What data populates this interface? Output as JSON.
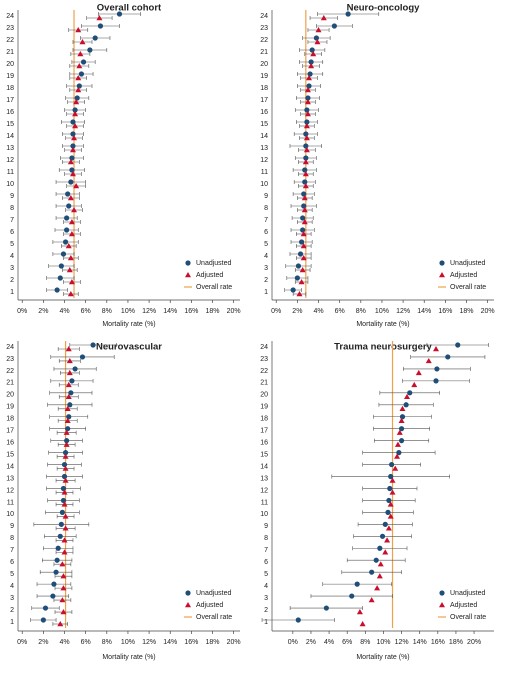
{
  "chart_data": [
    {
      "type": "dot",
      "title": "Overall cohort",
      "xlabel": "Mortality rate (%)",
      "categories": [
        "1",
        "2",
        "3",
        "4",
        "5",
        "6",
        "7",
        "8",
        "9",
        "10",
        "11",
        "12",
        "13",
        "14",
        "15",
        "16",
        "17",
        "18",
        "19",
        "20",
        "21",
        "22",
        "23",
        "24"
      ],
      "series": [
        {
          "name": "Unadjusted",
          "color": "#1f4e79",
          "marker": "circle",
          "values": [
            3.3,
            3.6,
            3.7,
            3.9,
            4.1,
            4.2,
            4.2,
            4.4,
            4.3,
            4.6,
            4.7,
            4.7,
            4.8,
            4.8,
            4.8,
            5.0,
            5.2,
            5.4,
            5.6,
            5.8,
            6.4,
            6.9,
            7.4,
            9.2
          ],
          "errors": [
            1.0,
            1.3,
            1.2,
            1.0,
            1.2,
            1.1,
            1.0,
            1.2,
            1.1,
            1.4,
            1.2,
            1.1,
            1.0,
            1.0,
            1.1,
            1.0,
            1.1,
            1.2,
            1.1,
            1.1,
            1.6,
            1.4,
            1.8,
            2.0
          ]
        },
        {
          "name": "Adjusted",
          "color": "#c8102e",
          "marker": "triangle",
          "values": [
            4.6,
            4.7,
            4.5,
            4.6,
            4.4,
            4.7,
            4.7,
            4.9,
            4.6,
            5.1,
            4.8,
            4.6,
            4.8,
            4.9,
            5.0,
            5.0,
            5.1,
            5.3,
            5.3,
            5.4,
            5.5,
            5.7,
            5.3,
            7.3
          ],
          "errors": [
            0.7,
            0.8,
            0.7,
            0.7,
            0.7,
            0.8,
            0.8,
            0.8,
            0.8,
            0.9,
            0.8,
            0.8,
            0.8,
            0.8,
            0.8,
            0.8,
            0.8,
            0.8,
            0.8,
            0.9,
            0.9,
            0.9,
            0.9,
            1.2
          ]
        }
      ],
      "reference": {
        "name": "Overall rate",
        "color": "#f0a04b",
        "value": 4.9
      },
      "xlim": [
        -0.4,
        20.6
      ],
      "xticks": [
        {
          "value": 0,
          "label": "0%"
        },
        {
          "value": 2,
          "label": "2%"
        },
        {
          "value": 4,
          "label": "4%"
        },
        {
          "value": 6,
          "label": "6%"
        },
        {
          "value": 8,
          "label": "8%"
        },
        {
          "value": 10,
          "label": "10%"
        },
        {
          "value": 12,
          "label": "12%"
        },
        {
          "value": 14,
          "label": "14%"
        },
        {
          "value": 16,
          "label": "16%"
        },
        {
          "value": 18,
          "label": "18%"
        },
        {
          "value": 20,
          "label": "20%"
        }
      ],
      "legend": "lower right"
    },
    {
      "type": "dot",
      "title": "Neuro-oncology",
      "xlabel": "Mortality rate (%)",
      "categories": [
        "1",
        "2",
        "3",
        "4",
        "5",
        "6",
        "7",
        "8",
        "9",
        "10",
        "11",
        "12",
        "13",
        "14",
        "15",
        "16",
        "17",
        "18",
        "19",
        "20",
        "21",
        "22",
        "23",
        "24"
      ],
      "series": [
        {
          "name": "Unadjusted",
          "color": "#1f4e79",
          "marker": "circle",
          "values": [
            1.6,
            2.0,
            2.1,
            2.3,
            2.4,
            2.5,
            2.5,
            2.6,
            2.6,
            2.7,
            2.7,
            2.8,
            2.8,
            2.8,
            2.9,
            2.9,
            3.0,
            3.1,
            3.2,
            3.3,
            3.4,
            3.8,
            5.5,
            6.8
          ],
          "errors": [
            0.8,
            1.0,
            1.2,
            1.0,
            1.0,
            1.1,
            1.0,
            1.2,
            1.0,
            1.0,
            1.1,
            1.0,
            1.5,
            1.1,
            1.0,
            1.1,
            1.1,
            1.1,
            1.2,
            1.1,
            1.2,
            1.3,
            1.7,
            2.9
          ]
        },
        {
          "name": "Adjusted",
          "color": "#c8102e",
          "marker": "triangle",
          "values": [
            2.2,
            2.4,
            2.5,
            2.6,
            2.6,
            2.6,
            2.7,
            2.7,
            2.7,
            2.8,
            2.8,
            2.8,
            2.9,
            2.9,
            2.9,
            3.0,
            3.0,
            3.0,
            3.1,
            3.3,
            3.5,
            3.9,
            4.0,
            4.5
          ],
          "errors": [
            0.6,
            0.6,
            0.7,
            0.7,
            0.7,
            0.7,
            0.7,
            0.7,
            0.7,
            0.7,
            0.7,
            0.7,
            0.8,
            0.7,
            0.7,
            0.7,
            0.7,
            0.7,
            0.8,
            0.8,
            0.8,
            0.9,
            1.0,
            1.3
          ]
        }
      ],
      "reference": {
        "name": "Overall rate",
        "color": "#f0a04b",
        "value": 2.8
      },
      "xlim": [
        -0.4,
        20.6
      ],
      "xticks": [
        {
          "value": 0,
          "label": "0%"
        },
        {
          "value": 2,
          "label": "2%"
        },
        {
          "value": 4,
          "label": "4%"
        },
        {
          "value": 6,
          "label": "6%"
        },
        {
          "value": 8,
          "label": "8%"
        },
        {
          "value": 10,
          "label": "10%"
        },
        {
          "value": 12,
          "label": "12%"
        },
        {
          "value": 14,
          "label": "14%"
        },
        {
          "value": 16,
          "label": "16%"
        },
        {
          "value": 18,
          "label": "18%"
        },
        {
          "value": 20,
          "label": "20%"
        }
      ],
      "legend": "lower right"
    },
    {
      "type": "dot",
      "title": "Neurovascular",
      "xlabel": "Mortality rate (%)",
      "categories": [
        "1",
        "2",
        "3",
        "4",
        "5",
        "6",
        "7",
        "8",
        "9",
        "10",
        "11",
        "12",
        "13",
        "14",
        "15",
        "16",
        "17",
        "18",
        "19",
        "20",
        "21",
        "22",
        "23",
        "24"
      ],
      "series": [
        {
          "name": "Unadjusted",
          "color": "#1f4e79",
          "marker": "circle",
          "values": [
            2.0,
            2.2,
            2.9,
            3.0,
            3.2,
            3.3,
            3.4,
            3.6,
            3.7,
            3.8,
            3.9,
            3.9,
            4.0,
            4.0,
            4.1,
            4.2,
            4.3,
            4.4,
            4.5,
            4.6,
            4.7,
            5.0,
            5.7,
            6.7
          ],
          "errors": [
            1.2,
            1.3,
            1.5,
            1.6,
            1.5,
            1.4,
            1.4,
            1.5,
            2.6,
            1.6,
            1.5,
            1.6,
            1.7,
            1.6,
            1.6,
            1.5,
            1.7,
            1.8,
            2.1,
            2.0,
            2.0,
            2.0,
            3.0,
            2.2
          ]
        },
        {
          "name": "Adjusted",
          "color": "#c8102e",
          "marker": "triangle",
          "values": [
            3.6,
            3.9,
            3.8,
            3.9,
            3.9,
            3.8,
            4.0,
            4.0,
            4.1,
            4.1,
            4.0,
            4.0,
            4.1,
            4.1,
            4.1,
            4.2,
            4.2,
            4.3,
            4.3,
            4.4,
            4.4,
            4.5,
            4.5,
            4.4
          ],
          "errors": [
            0.7,
            0.8,
            0.8,
            0.8,
            0.8,
            0.8,
            0.8,
            0.8,
            0.9,
            0.8,
            0.8,
            0.8,
            0.9,
            0.8,
            0.8,
            0.8,
            0.9,
            0.9,
            0.9,
            0.9,
            0.9,
            0.9,
            1.0,
            1.0
          ]
        }
      ],
      "reference": {
        "name": "Overall rate",
        "color": "#f0a04b",
        "value": 4.1
      },
      "xlim": [
        -0.4,
        20.6
      ],
      "xticks": [
        {
          "value": 0,
          "label": "0%"
        },
        {
          "value": 2,
          "label": "2%"
        },
        {
          "value": 4,
          "label": "4%"
        },
        {
          "value": 6,
          "label": "6%"
        },
        {
          "value": 8,
          "label": "8%"
        },
        {
          "value": 10,
          "label": "10%"
        },
        {
          "value": 12,
          "label": "12%"
        },
        {
          "value": 14,
          "label": "14%"
        },
        {
          "value": 16,
          "label": "16%"
        },
        {
          "value": 18,
          "label": "18%"
        },
        {
          "value": 20,
          "label": "20%"
        }
      ],
      "legend": "lower right"
    },
    {
      "type": "dot",
      "title": "Trauma neurosurgery",
      "xlabel": "Mortality rate (%)",
      "categories": [
        "1",
        "2",
        "3",
        "4",
        "5",
        "6",
        "7",
        "8",
        "9",
        "10",
        "11",
        "12",
        "13",
        "14",
        "15",
        "16",
        "17",
        "18",
        "19",
        "20",
        "21",
        "22",
        "23",
        "24"
      ],
      "series": [
        {
          "name": "Unadjusted",
          "color": "#1f4e79",
          "marker": "circle",
          "values": [
            0.6,
            3.7,
            6.5,
            7.1,
            8.7,
            9.2,
            9.6,
            9.9,
            10.2,
            10.5,
            10.6,
            10.7,
            10.8,
            10.9,
            11.7,
            12.0,
            12.0,
            12.1,
            12.5,
            12.9,
            15.8,
            15.9,
            17.1,
            18.2
          ],
          "errors": [
            4.0,
            4.0,
            4.5,
            3.8,
            3.3,
            3.2,
            3.0,
            3.2,
            3.0,
            2.8,
            2.9,
            3.0,
            6.5,
            3.2,
            4.0,
            3.0,
            3.1,
            3.2,
            3.0,
            3.3,
            3.7,
            3.7,
            4.1,
            3.4
          ]
        },
        {
          "name": "Adjusted",
          "color": "#c8102e",
          "marker": "triangle",
          "values": [
            7.7,
            7.4,
            8.7,
            9.3,
            9.6,
            9.7,
            10.2,
            10.4,
            10.6,
            10.8,
            10.8,
            11.0,
            11.0,
            11.3,
            11.5,
            11.6,
            11.8,
            12.0,
            12.1,
            12.6,
            13.4,
            13.9,
            15.0,
            15.8
          ]
        }
      ],
      "reference": {
        "name": "Overall rate",
        "color": "#f0a04b",
        "value": 11.0
      },
      "xlim": [
        -2.3,
        22.2
      ],
      "xticks": [
        {
          "value": 0,
          "label": "0%"
        },
        {
          "value": 2,
          "label": "2%"
        },
        {
          "value": 4,
          "label": "4%"
        },
        {
          "value": 6,
          "label": "6%"
        },
        {
          "value": 8,
          "label": "8%"
        },
        {
          "value": 10,
          "label": "10%"
        },
        {
          "value": 12,
          "label": "12%"
        },
        {
          "value": 14,
          "label": "14%"
        },
        {
          "value": 16,
          "label": "16%"
        },
        {
          "value": 18,
          "label": "18%"
        },
        {
          "value": 20,
          "label": "20%"
        }
      ],
      "legend": "lower right"
    }
  ]
}
